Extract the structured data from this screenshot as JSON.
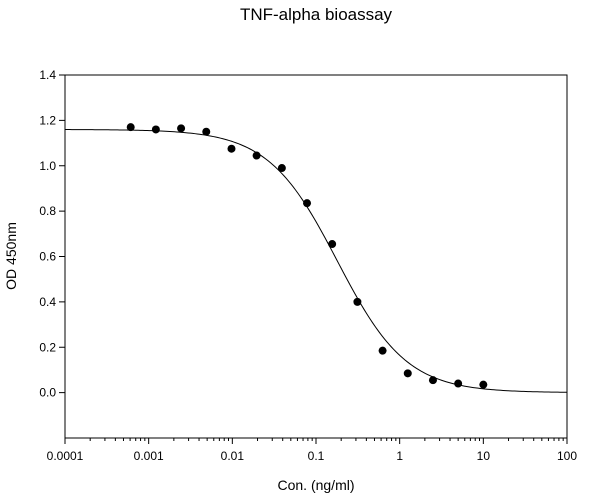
{
  "chart_data": {
    "type": "scatter",
    "title": "TNF-alpha bioassay",
    "xlabel": "Con. (ng/ml)",
    "ylabel": "OD 450nm",
    "xscale": "log",
    "xlim": [
      0.0001,
      100
    ],
    "ylim": [
      -0.2,
      1.4
    ],
    "grid": false,
    "x_ticks": [
      0.0001,
      0.001,
      0.01,
      0.1,
      1,
      10,
      100
    ],
    "x_tick_labels": [
      "0.0001",
      "0.001",
      "0.01",
      "0.1",
      "1",
      "10",
      "100"
    ],
    "y_ticks": [
      0.0,
      0.2,
      0.4,
      0.6,
      0.8,
      1.0,
      1.2,
      1.4
    ],
    "y_tick_labels": [
      "0.0",
      "0.2",
      "0.4",
      "0.6",
      "0.8",
      "1.0",
      "1.2",
      "1.4"
    ],
    "series": [
      {
        "marker": "filled-circle",
        "color": "#000000",
        "x": [
          0.00061,
          0.00122,
          0.00244,
          0.00488,
          0.00977,
          0.0195,
          0.0391,
          0.0781,
          0.156,
          0.3125,
          0.625,
          1.25,
          2.5,
          5,
          10
        ],
        "y": [
          1.17,
          1.16,
          1.165,
          1.15,
          1.075,
          1.045,
          0.99,
          0.835,
          0.655,
          0.4,
          0.185,
          0.085,
          0.055,
          0.04,
          0.035
        ]
      }
    ],
    "fit": {
      "model": "4PL",
      "color": "#000000",
      "top": 1.16,
      "bottom": 0.0,
      "ec50": 0.18,
      "hill": 1.05
    }
  }
}
